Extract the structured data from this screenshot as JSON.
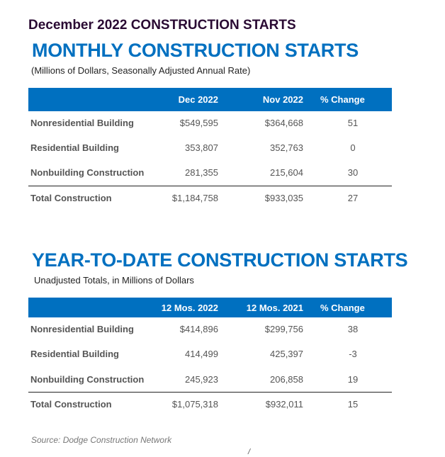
{
  "title": "December 2022 CONSTRUCTION STARTS",
  "monthly": {
    "heading": "MONTHLY CONSTRUCTION STARTS",
    "subtitle": "(Millions of Dollars, Seasonally Adjusted Annual Rate)",
    "columns": [
      "Dec 2022",
      "Nov 2022",
      "% Change"
    ],
    "rows": [
      {
        "label": "Nonresidential Building",
        "v1": "$549,595",
        "v2": "$364,668",
        "pct": "51"
      },
      {
        "label": "Residential Building",
        "v1": "353,807",
        "v2": "352,763",
        "pct": "0"
      },
      {
        "label": "Nonbuilding Construction",
        "v1": "281,355",
        "v2": "215,604",
        "pct": "30"
      },
      {
        "label": "Total Construction",
        "v1": "$1,184,758",
        "v2": "$933,035",
        "pct": "27"
      }
    ]
  },
  "ytd": {
    "heading": "YEAR-TO-DATE CONSTRUCTION STARTS",
    "subtitle": "Unadjusted Totals, in Millions of Dollars",
    "columns": [
      "12 Mos. 2022",
      "12 Mos. 2021",
      "% Change"
    ],
    "rows": [
      {
        "label": "Nonresidential Building",
        "v1": "$414,896",
        "v2": "$299,756",
        "pct": "38"
      },
      {
        "label": "Residential Building",
        "v1": "414,499",
        "v2": "425,397",
        "pct": "-3"
      },
      {
        "label": "Nonbuilding Construction",
        "v1": "245,923",
        "v2": "206,858",
        "pct": "19"
      },
      {
        "label": "Total Construction",
        "v1": "$1,075,318",
        "v2": "$932,011",
        "pct": "15"
      }
    ]
  },
  "source": "Source: Dodge Construction Network",
  "stray_mark": "/",
  "colors": {
    "accent": "#0070c0",
    "title": "#2a0a33"
  }
}
